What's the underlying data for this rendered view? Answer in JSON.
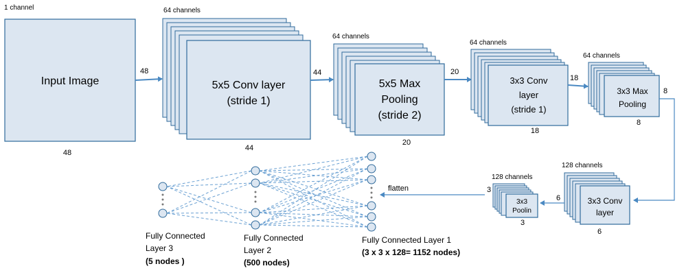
{
  "input": {
    "channels": "1 channel",
    "label": "Input Image",
    "height": "48",
    "width": "48"
  },
  "conv1": {
    "channels": "64 channels",
    "line1": "5x5 Conv layer",
    "line2": "(stride 1)",
    "height": "44",
    "width": "44"
  },
  "pool1": {
    "channels": "64 channels",
    "line1": "5x5 Max",
    "line2": "Pooling",
    "line3": "(stride 2)",
    "height": "20",
    "width": "20"
  },
  "conv2": {
    "channels": "64 channels",
    "line1": "3x3 Conv",
    "line2": "layer",
    "line3": "(stride 1)",
    "height": "18",
    "width": "18"
  },
  "pool2": {
    "channels": "64 channels",
    "line1": "3x3 Max",
    "line2": "Pooling",
    "height": "8",
    "width": "8"
  },
  "conv3": {
    "channels": "128 channels",
    "line1": "3x3 Conv",
    "line2": "layer",
    "height": "6",
    "width": "6"
  },
  "pool3": {
    "channels": "128 channels",
    "line1": "3x3",
    "line2": "Poolin",
    "height": "3",
    "width": "3"
  },
  "flatten_label": "flatten",
  "fc1": {
    "line1": "Fully Connected Layer 1",
    "line2": "(3 x 3 x 128= 1152 nodes)"
  },
  "fc2": {
    "line1": "Fully Connected",
    "line2": "Layer 2",
    "line3": "(500 nodes)"
  },
  "fc3": {
    "line1": "Fully Connected",
    "line2": "Layer 3",
    "line3": "(5 nodes )"
  },
  "colors": {
    "box_fill": "#dce6f1",
    "box_stroke": "#2f6a9b",
    "arrow": "#4a89c2"
  }
}
